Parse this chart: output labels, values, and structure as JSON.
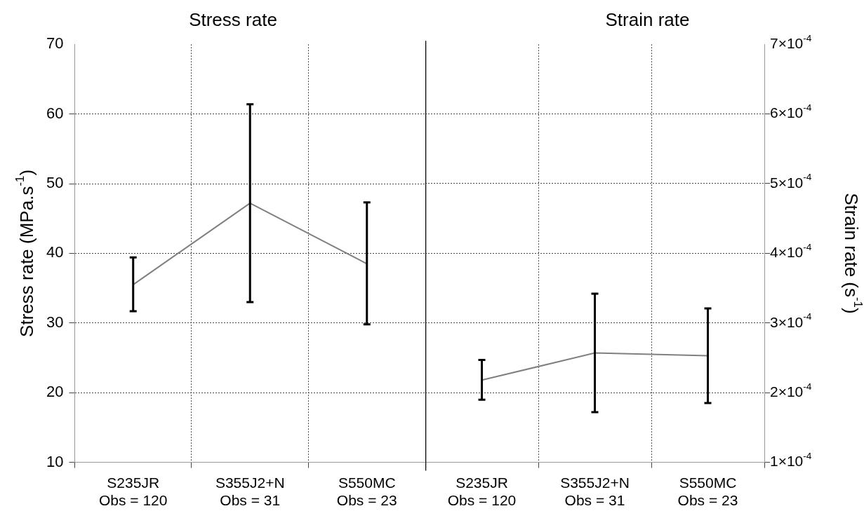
{
  "chart_data": [
    {
      "type": "line",
      "title": "Stress rate",
      "ylabel": "Stress rate (MPa.s$^{-1}$)",
      "categories": [
        "S235JR\nObs = 120",
        "S355J2+N\nObs = 31",
        "S550MC\nObs = 23"
      ],
      "ylim": [
        10,
        70
      ],
      "yticks": [
        10,
        20,
        30,
        40,
        50,
        60,
        70
      ],
      "grid": true,
      "marker": "none",
      "series": [
        {
          "color": "#808080",
          "values": [
            35.5,
            47.2,
            38.5
          ],
          "errors": [
            [
              31.7,
              39.4
            ],
            [
              33.0,
              61.4
            ],
            [
              29.8,
              47.3
            ]
          ]
        }
      ]
    },
    {
      "type": "line",
      "title": "Strain rate",
      "y2label": "Strain rate (s$^{-1}$)",
      "categories": [
        "S235JR\nObs = 120",
        "S355J2+N\nObs = 31",
        "S550MC\nObs = 23"
      ],
      "y2lim": [
        0.0001,
        0.0007
      ],
      "y2ticks": [
        {
          "value": 0.0001,
          "label": "1×10$^{-4}$"
        },
        {
          "value": 0.0002,
          "label": "2×10$^{-4}$"
        },
        {
          "value": 0.0003,
          "label": "3×10$^{-4}$"
        },
        {
          "value": 0.0004,
          "label": "4×10$^{-4}$"
        },
        {
          "value": 0.0005,
          "label": "5×10$^{-4}$"
        },
        {
          "value": 0.0006,
          "label": "6×10$^{-4}$"
        },
        {
          "value": 0.0007,
          "label": "7×10$^{-4}$"
        }
      ],
      "grid": true,
      "marker": "none",
      "series": [
        {
          "axis": "y2",
          "color": "#808080",
          "values": [
            0.000218,
            0.000257,
            0.000253
          ],
          "errors": [
            [
              0.00019,
              0.000247
            ],
            [
              0.000172,
              0.000342
            ],
            [
              0.000185,
              0.000321
            ]
          ]
        }
      ]
    }
  ]
}
